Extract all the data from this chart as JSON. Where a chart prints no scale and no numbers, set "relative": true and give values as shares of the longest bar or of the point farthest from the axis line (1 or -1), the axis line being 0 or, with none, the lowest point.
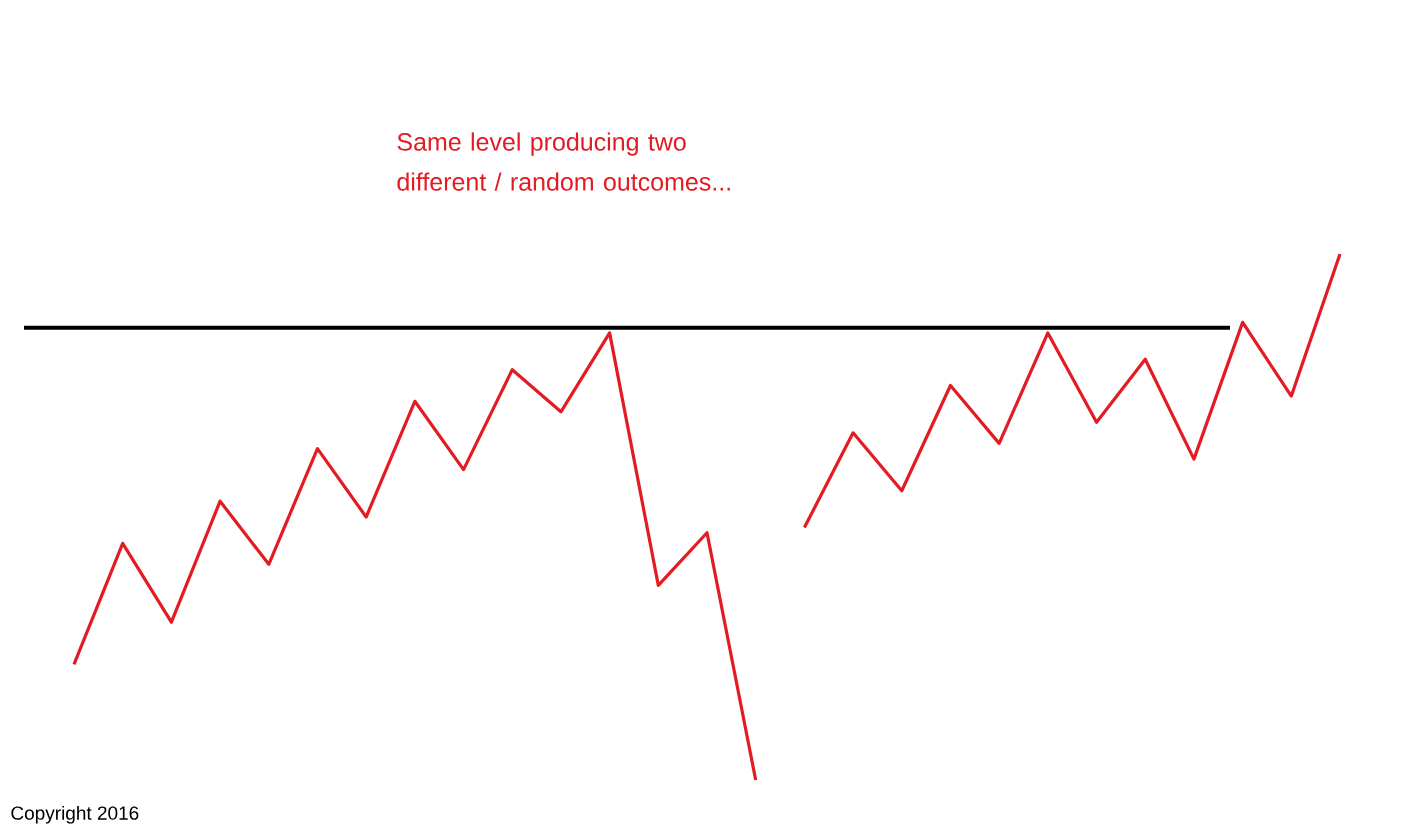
{
  "chart_data": {
    "type": "line",
    "relative": true,
    "marker": "none",
    "line_style": "solid",
    "categories": [
      null,
      null,
      null,
      null,
      null,
      null,
      null,
      null,
      null,
      null,
      null,
      null,
      null,
      null,
      null,
      null,
      null,
      null,
      null,
      null,
      null,
      null,
      null,
      null,
      null,
      null,
      null
    ],
    "annotations": [
      "Same level producing two\ndifferent / random outcomes...",
      "Copyright 2016"
    ],
    "ref_lines": [
      {
        "axis": "y",
        "value": 0.86,
        "color": "#000000"
      }
    ],
    "series": [
      {
        "color": "#e31b23",
        "values": [
          0.22,
          0.45,
          0.3,
          0.53,
          0.41,
          0.63,
          0.5,
          0.72,
          0.59,
          0.78,
          0.7,
          0.85,
          0.37,
          0.47,
          0,
          null,
          null,
          null,
          null,
          null,
          null,
          null,
          null,
          null,
          null,
          null,
          null
        ]
      },
      {
        "color": "#e31b23",
        "values": [
          null,
          null,
          null,
          null,
          null,
          null,
          null,
          null,
          null,
          null,
          null,
          null,
          null,
          null,
          null,
          0.48,
          0.66,
          0.55,
          0.75,
          0.64,
          0.85,
          0.68,
          0.8,
          0.61,
          0.87,
          0.73,
          1
        ]
      }
    ]
  }
}
